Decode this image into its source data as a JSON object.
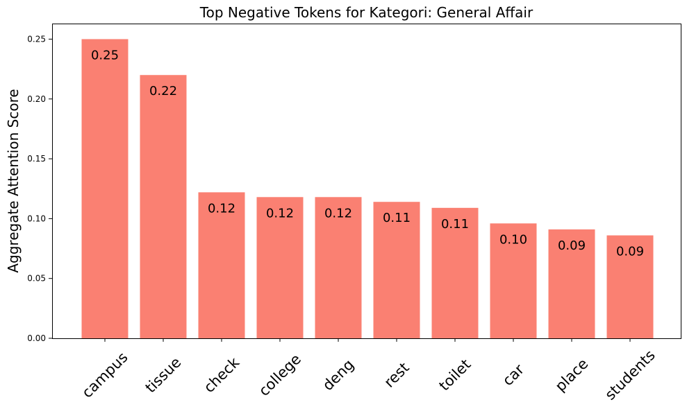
{
  "chart_data": {
    "type": "bar",
    "title": "Top Negative Tokens for Kategori: General Affair",
    "xlabel": "",
    "ylabel": "Aggregate Attention Score",
    "categories": [
      "campus",
      "tissue",
      "check",
      "college",
      "deng",
      "rest",
      "toilet",
      "car",
      "place",
      "students"
    ],
    "values": [
      0.25,
      0.22,
      0.122,
      0.118,
      0.118,
      0.114,
      0.109,
      0.096,
      0.091,
      0.086
    ],
    "data_labels": [
      "0.25",
      "0.22",
      "0.12",
      "0.12",
      "0.12",
      "0.11",
      "0.11",
      "0.10",
      "0.09",
      "0.09"
    ],
    "ylim": [
      0,
      0.263
    ],
    "yticks": [
      0.0,
      0.05,
      0.1,
      0.15,
      0.2,
      0.25
    ],
    "ytick_labels": [
      "0.00",
      "0.05",
      "0.10",
      "0.15",
      "0.20",
      "0.25"
    ],
    "grid": false,
    "bar_color": "#fa8072"
  }
}
